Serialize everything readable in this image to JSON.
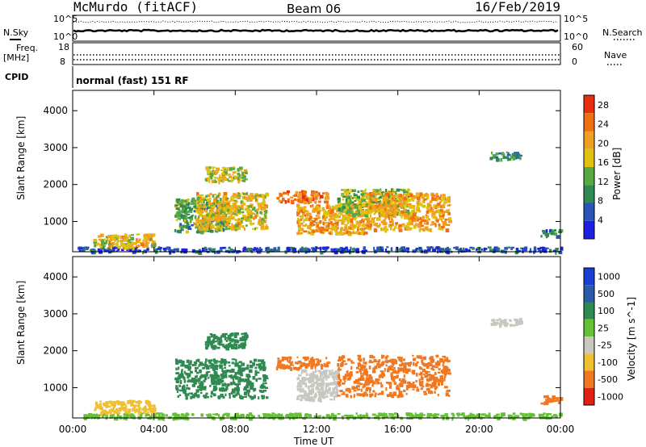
{
  "header": {
    "station": "McMurdo (fitACF)",
    "beam": "Beam 06",
    "date": "16/Feb/2019"
  },
  "top_panels": {
    "nsky_label": "N.Sky",
    "nsearch_label": "N.Search",
    "noise_ticks": [
      "10^5",
      "10^0"
    ],
    "freq_label": "Freq.",
    "freq_unit": "[MHz]",
    "freq_ticks": [
      "18",
      "8"
    ],
    "nave_label": "Nave",
    "nave_ticks": [
      "60",
      "0"
    ],
    "cpid_label": "CPID",
    "cpid_text": "normal (fast) 151 RF"
  },
  "chart_data": [
    {
      "type": "heatmap",
      "title": "",
      "xlabel": "Time UT",
      "ylabel": "Slant Range [km]",
      "xlim": [
        "00:00",
        "24:00"
      ],
      "ylim": [
        180,
        4550
      ],
      "x_ticks": [
        "00:00",
        "04:00",
        "08:00",
        "12:00",
        "16:00",
        "20:00",
        "00:00"
      ],
      "y_ticks": [
        1000,
        2000,
        3000,
        4000
      ],
      "colorbar": {
        "label": "Power [dB]",
        "ticks": [
          4,
          8,
          12,
          16,
          20,
          24,
          28
        ],
        "range": [
          0,
          30
        ],
        "colors": [
          "#1f1fe0",
          "#2a55b4",
          "#2f8a52",
          "#5aa844",
          "#e0c010",
          "#f0a020",
          "#f07010",
          "#e83010"
        ]
      },
      "echo_regions": [
        {
          "t": [
            0.2,
            24.0
          ],
          "r": [
            200,
            330
          ],
          "value": 5
        },
        {
          "t": [
            1.0,
            4.0
          ],
          "r": [
            330,
            680
          ],
          "value": 18
        },
        {
          "t": [
            5.0,
            7.5
          ],
          "r": [
            750,
            1650
          ],
          "value": 12
        },
        {
          "t": [
            6.0,
            9.5
          ],
          "r": [
            800,
            1800
          ],
          "value": 18
        },
        {
          "t": [
            6.5,
            8.5
          ],
          "r": [
            2100,
            2500
          ],
          "value": 16
        },
        {
          "t": [
            10.0,
            12.5
          ],
          "r": [
            1550,
            1850
          ],
          "value": 24
        },
        {
          "t": [
            11.0,
            14.5
          ],
          "r": [
            700,
            1500
          ],
          "value": 20
        },
        {
          "t": [
            13.0,
            16.5
          ],
          "r": [
            1200,
            1900
          ],
          "value": 14
        },
        {
          "t": [
            14.5,
            18.5
          ],
          "r": [
            800,
            1800
          ],
          "value": 20
        },
        {
          "t": [
            20.5,
            22.0
          ],
          "r": [
            2700,
            2900
          ],
          "value": 10
        },
        {
          "t": [
            23.0,
            24.0
          ],
          "r": [
            600,
            800
          ],
          "value": 8
        }
      ]
    },
    {
      "type": "heatmap",
      "title": "",
      "xlabel": "Time UT",
      "ylabel": "Slant Range [km]",
      "xlim": [
        "00:00",
        "24:00"
      ],
      "ylim": [
        180,
        4550
      ],
      "x_ticks": [
        "00:00",
        "04:00",
        "08:00",
        "12:00",
        "16:00",
        "20:00",
        "00:00"
      ],
      "y_ticks": [
        1000,
        2000,
        3000,
        4000
      ],
      "colorbar": {
        "label": "Velocity [m s^-1]",
        "ticks": [
          "1000",
          "500",
          "100",
          "25",
          "-25",
          "-100",
          "-500",
          "-1000"
        ],
        "colors": [
          "#1a3ed0",
          "#2a5aa8",
          "#2e8a50",
          "#66c038",
          "#c8c8c0",
          "#f0c030",
          "#f07820",
          "#e02010"
        ]
      },
      "echo_regions": [
        {
          "t": [
            0.2,
            24.0
          ],
          "r": [
            200,
            330
          ],
          "value": 60
        },
        {
          "t": [
            1.0,
            4.0
          ],
          "r": [
            330,
            680
          ],
          "value": -60
        },
        {
          "t": [
            5.0,
            9.5
          ],
          "r": [
            750,
            1800
          ],
          "value": 300
        },
        {
          "t": [
            6.5,
            8.5
          ],
          "r": [
            2100,
            2500
          ],
          "value": 300
        },
        {
          "t": [
            10.0,
            12.5
          ],
          "r": [
            1550,
            1850
          ],
          "value": -300
        },
        {
          "t": [
            11.0,
            13.0
          ],
          "r": [
            700,
            1500
          ],
          "value": 0
        },
        {
          "t": [
            13.0,
            18.5
          ],
          "r": [
            800,
            1900
          ],
          "value": -300
        },
        {
          "t": [
            20.5,
            22.0
          ],
          "r": [
            2700,
            2900
          ],
          "value": 0
        },
        {
          "t": [
            23.0,
            24.0
          ],
          "r": [
            600,
            800
          ],
          "value": -300
        }
      ]
    }
  ]
}
